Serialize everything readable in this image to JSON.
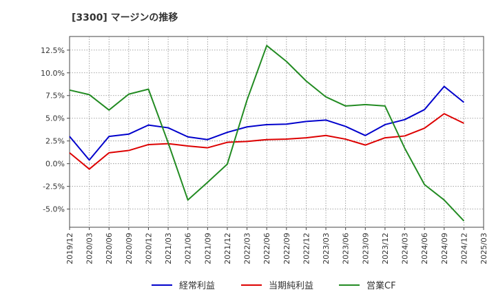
{
  "chart_data": {
    "type": "line",
    "title": "[3300]  マージンの推移",
    "xlabel": "",
    "ylabel": "",
    "x": [
      "2019/12",
      "2020/03",
      "2020/06",
      "2020/09",
      "2020/12",
      "2021/03",
      "2021/06",
      "2021/09",
      "2021/12",
      "2022/03",
      "2022/06",
      "2022/09",
      "2022/12",
      "2023/03",
      "2023/06",
      "2023/09",
      "2023/12",
      "2024/03",
      "2024/06",
      "2024/09",
      "2024/12",
      "2025/03"
    ],
    "ylim": [
      -7.0,
      14.0
    ],
    "yticks": [
      12.5,
      10.0,
      7.5,
      5.0,
      2.5,
      0.0,
      -2.5,
      -5.0
    ],
    "ytick_labels": [
      "12.5%",
      "10.0%",
      "7.5%",
      "5.0%",
      "2.5%",
      "0.0%",
      "-2.5%",
      "-5.0%"
    ],
    "grid": true,
    "legend_position": "bottom",
    "series": [
      {
        "name": "経常利益",
        "color": "#0000cc",
        "values": [
          3.0,
          0.4,
          3.0,
          3.25,
          4.25,
          3.95,
          2.95,
          2.65,
          3.45,
          4.05,
          4.3,
          4.35,
          4.65,
          4.8,
          4.1,
          3.1,
          4.3,
          4.85,
          5.95,
          8.5,
          6.75,
          null
        ]
      },
      {
        "name": "当期純利益",
        "color": "#dd0000",
        "values": [
          1.2,
          -0.6,
          1.2,
          1.45,
          2.1,
          2.2,
          1.95,
          1.75,
          2.35,
          2.45,
          2.65,
          2.7,
          2.85,
          3.1,
          2.7,
          2.05,
          2.85,
          3.05,
          3.9,
          5.5,
          4.45,
          null
        ]
      },
      {
        "name": "営業CF",
        "color": "#228b22",
        "values": [
          8.1,
          7.6,
          5.9,
          7.65,
          8.2,
          2.3,
          -4.0,
          -2.05,
          -0.05,
          7.0,
          13.0,
          11.25,
          9.1,
          7.35,
          6.35,
          6.5,
          6.35,
          1.7,
          -2.3,
          -4.0,
          -6.3,
          null
        ]
      }
    ]
  }
}
